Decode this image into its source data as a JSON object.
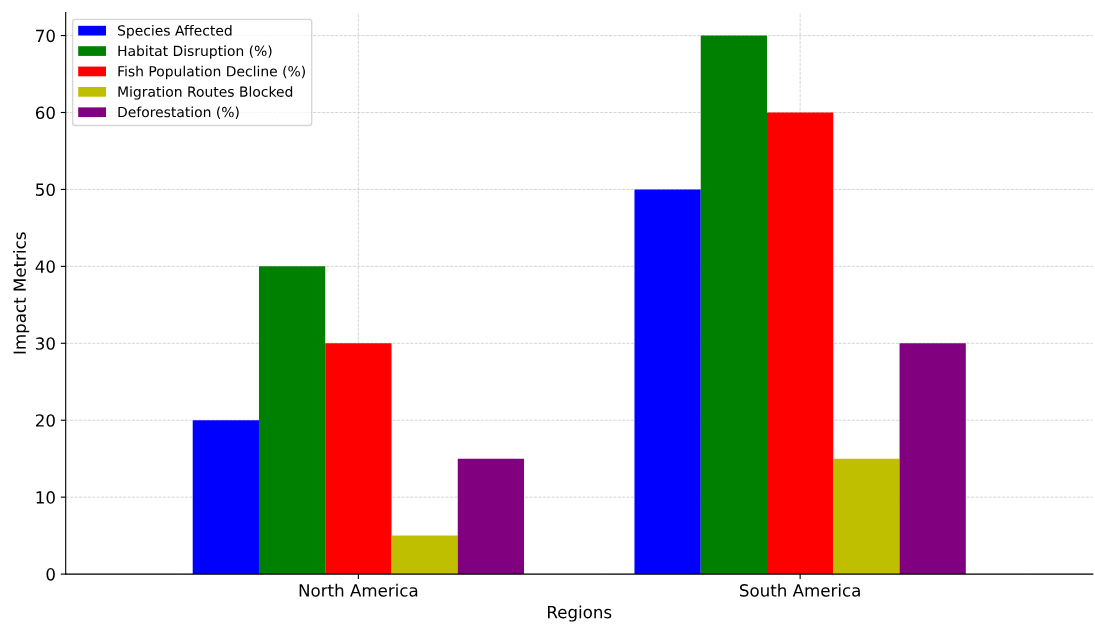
{
  "chart_data": {
    "type": "bar",
    "xlabel": "Regions",
    "ylabel": "Impact Metrics",
    "categories": [
      "North America",
      "South America"
    ],
    "series": [
      {
        "name": "Species Affected",
        "color": "#0000ff",
        "values": [
          20,
          50
        ]
      },
      {
        "name": "Habitat Disruption (%)",
        "color": "#008000",
        "values": [
          40,
          70
        ]
      },
      {
        "name": "Fish Population Decline (%)",
        "color": "#ff0000",
        "values": [
          30,
          60
        ]
      },
      {
        "name": "Migration Routes Blocked",
        "color": "#bfbf00",
        "values": [
          5,
          15
        ]
      },
      {
        "name": "Deforestation (%)",
        "color": "#800080",
        "values": [
          15,
          30
        ]
      }
    ],
    "ylim": [
      0,
      73
    ],
    "yticks": [
      0,
      10,
      20,
      30,
      40,
      50,
      60,
      70
    ],
    "grid": true,
    "legend": "top left"
  }
}
